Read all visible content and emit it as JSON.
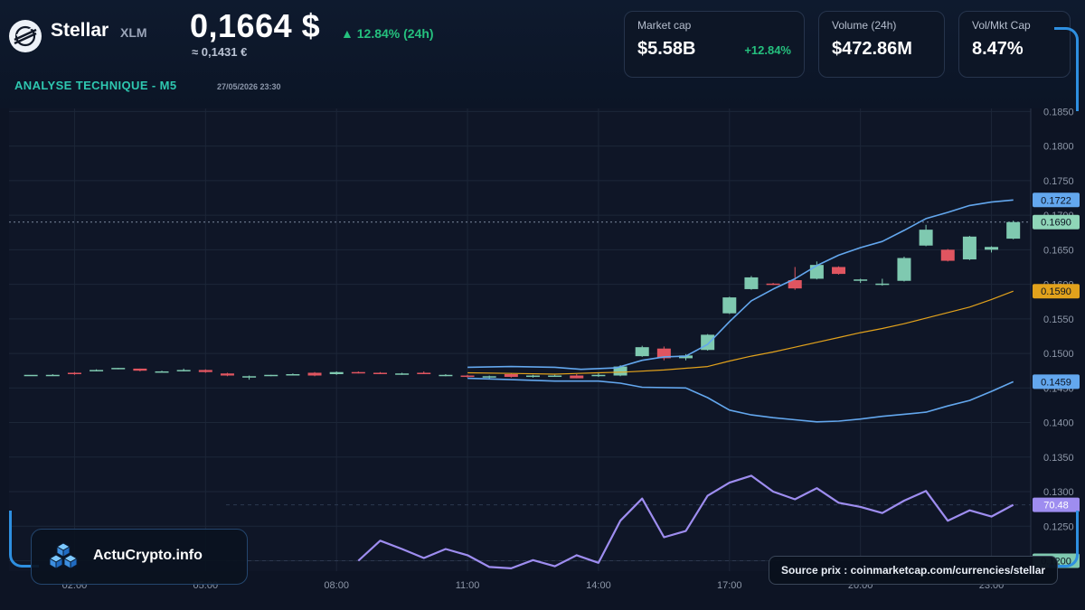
{
  "header": {
    "coin_name": "Stellar",
    "coin_symbol": "XLM",
    "price": "0,1664 $",
    "price_eur": "≈ 0,1431 €",
    "change": "▲ 12.84% (24h)",
    "section_title": "ANALYSE TECHNIQUE - M5",
    "timestamp": "27/05/2026 23:30",
    "logo_icon": "stellar-logo-icon"
  },
  "stats": [
    {
      "label": "Market cap",
      "value": "$5.58B",
      "delta": "+12.84%"
    },
    {
      "label": "Volume (24h)",
      "value": "$472.86M",
      "delta": ""
    },
    {
      "label": "Vol/Mkt Cap",
      "value": "8.47%",
      "delta": ""
    }
  ],
  "brand": {
    "name": "ActuCrypto.info",
    "icon": "cubes-logo-icon"
  },
  "source": {
    "text": "Source prix : coinmarketcap.com/currencies/stellar"
  },
  "colors": {
    "up": "#7fc9b0",
    "down": "#e05560",
    "bollinger": "#63a7ee",
    "ma": "#e2a21c",
    "rsi": "#9e8df0",
    "accent": "#2ec7b0",
    "positive": "#25c07e"
  },
  "chart_data": {
    "type": "candlestick",
    "y_ticks": [
      "0.1200",
      "0.1250",
      "0.1300",
      "0.1350",
      "0.1400",
      "0.1450",
      "0.1500",
      "0.1550",
      "0.1600",
      "0.1650",
      "0.1700",
      "0.1750",
      "0.1800",
      "0.1850"
    ],
    "ylim": [
      0.1185,
      0.1857
    ],
    "x_ticks": [
      "02:00",
      "05:00",
      "08:00",
      "11:00",
      "14:00",
      "17:00",
      "20:00",
      "23:00"
    ],
    "xlim": [
      0.5,
      23.9
    ],
    "price_badges": [
      {
        "label": "0.1722",
        "value": 0.1722,
        "color": "#63a7ee",
        "text_color": "#0b1220"
      },
      {
        "label": "0.1690",
        "value": 0.169,
        "color": "#8fd6b8",
        "text_color": "#0b1220"
      },
      {
        "label": "0.1590",
        "value": 0.159,
        "color": "#e2a21c",
        "text_color": "#0b1220"
      },
      {
        "label": "0.1459",
        "value": 0.1459,
        "color": "#63a7ee",
        "text_color": "#0b1220"
      },
      {
        "label": "70.48",
        "value": 0.1281,
        "color": "#9e8df0",
        "text_color": "#ffffff"
      },
      {
        "label": "0.1200",
        "value": 0.12,
        "color": "#7fc9b0",
        "text_color": "#0b1220"
      }
    ],
    "current_price": 0.169,
    "candles": [
      {
        "t": 1.0,
        "o": 0.1469,
        "h": 0.1469,
        "l": 0.1469,
        "c": 0.1469
      },
      {
        "t": 1.5,
        "o": 0.1469,
        "h": 0.147,
        "l": 0.1468,
        "c": 0.1469
      },
      {
        "t": 2.0,
        "o": 0.1472,
        "h": 0.1473,
        "l": 0.1469,
        "c": 0.147
      },
      {
        "t": 2.5,
        "o": 0.1475,
        "h": 0.1477,
        "l": 0.1474,
        "c": 0.1476
      },
      {
        "t": 3.0,
        "o": 0.1478,
        "h": 0.1479,
        "l": 0.1477,
        "c": 0.1479
      },
      {
        "t": 3.5,
        "o": 0.1478,
        "h": 0.1478,
        "l": 0.1474,
        "c": 0.1475
      },
      {
        "t": 4.0,
        "o": 0.1474,
        "h": 0.1475,
        "l": 0.1473,
        "c": 0.1474
      },
      {
        "t": 4.5,
        "o": 0.1475,
        "h": 0.1478,
        "l": 0.1474,
        "c": 0.1476
      },
      {
        "t": 5.0,
        "o": 0.1476,
        "h": 0.1477,
        "l": 0.1472,
        "c": 0.1473
      },
      {
        "t": 5.5,
        "o": 0.1471,
        "h": 0.1472,
        "l": 0.1467,
        "c": 0.1468
      },
      {
        "t": 6.0,
        "o": 0.1467,
        "h": 0.1468,
        "l": 0.1462,
        "c": 0.1467
      },
      {
        "t": 6.5,
        "o": 0.1468,
        "h": 0.1469,
        "l": 0.1467,
        "c": 0.1469
      },
      {
        "t": 7.0,
        "o": 0.147,
        "h": 0.1471,
        "l": 0.1469,
        "c": 0.147
      },
      {
        "t": 7.5,
        "o": 0.1472,
        "h": 0.1473,
        "l": 0.1467,
        "c": 0.1468
      },
      {
        "t": 8.0,
        "o": 0.147,
        "h": 0.1474,
        "l": 0.1469,
        "c": 0.1473
      },
      {
        "t": 8.5,
        "o": 0.1473,
        "h": 0.1474,
        "l": 0.1471,
        "c": 0.1472
      },
      {
        "t": 9.0,
        "o": 0.1472,
        "h": 0.1473,
        "l": 0.147,
        "c": 0.1471
      },
      {
        "t": 9.5,
        "o": 0.147,
        "h": 0.1472,
        "l": 0.1469,
        "c": 0.1471
      },
      {
        "t": 10.0,
        "o": 0.1472,
        "h": 0.1474,
        "l": 0.147,
        "c": 0.147
      },
      {
        "t": 10.5,
        "o": 0.1469,
        "h": 0.147,
        "l": 0.1467,
        "c": 0.1469
      },
      {
        "t": 11.0,
        "o": 0.1468,
        "h": 0.1469,
        "l": 0.1465,
        "c": 0.1466
      },
      {
        "t": 11.5,
        "o": 0.1466,
        "h": 0.1468,
        "l": 0.1464,
        "c": 0.1467
      },
      {
        "t": 12.0,
        "o": 0.147,
        "h": 0.1471,
        "l": 0.1465,
        "c": 0.1466
      },
      {
        "t": 12.5,
        "o": 0.1466,
        "h": 0.1469,
        "l": 0.1465,
        "c": 0.1468
      },
      {
        "t": 13.0,
        "o": 0.1468,
        "h": 0.1469,
        "l": 0.1467,
        "c": 0.1468
      },
      {
        "t": 13.5,
        "o": 0.1468,
        "h": 0.147,
        "l": 0.1464,
        "c": 0.1464
      },
      {
        "t": 14.0,
        "o": 0.1468,
        "h": 0.1472,
        "l": 0.1466,
        "c": 0.1469
      },
      {
        "t": 14.5,
        "o": 0.1468,
        "h": 0.1483,
        "l": 0.1467,
        "c": 0.1481
      },
      {
        "t": 15.0,
        "o": 0.1496,
        "h": 0.1511,
        "l": 0.1495,
        "c": 0.1509
      },
      {
        "t": 15.5,
        "o": 0.1507,
        "h": 0.151,
        "l": 0.149,
        "c": 0.1493
      },
      {
        "t": 16.0,
        "o": 0.1493,
        "h": 0.1499,
        "l": 0.149,
        "c": 0.1497
      },
      {
        "t": 16.5,
        "o": 0.1505,
        "h": 0.1528,
        "l": 0.1504,
        "c": 0.1527
      },
      {
        "t": 17.0,
        "o": 0.1558,
        "h": 0.1582,
        "l": 0.1557,
        "c": 0.1581
      },
      {
        "t": 17.5,
        "o": 0.1593,
        "h": 0.1612,
        "l": 0.1592,
        "c": 0.161
      },
      {
        "t": 18.0,
        "o": 0.1601,
        "h": 0.1602,
        "l": 0.1599,
        "c": 0.16
      },
      {
        "t": 18.5,
        "o": 0.1606,
        "h": 0.1625,
        "l": 0.1592,
        "c": 0.1594
      },
      {
        "t": 19.0,
        "o": 0.1608,
        "h": 0.1633,
        "l": 0.1607,
        "c": 0.1628
      },
      {
        "t": 19.5,
        "o": 0.1625,
        "h": 0.1626,
        "l": 0.1614,
        "c": 0.1615
      },
      {
        "t": 20.0,
        "o": 0.1605,
        "h": 0.1608,
        "l": 0.1602,
        "c": 0.1607
      },
      {
        "t": 20.5,
        "o": 0.16,
        "h": 0.1608,
        "l": 0.1598,
        "c": 0.1601
      },
      {
        "t": 21.0,
        "o": 0.1605,
        "h": 0.164,
        "l": 0.1604,
        "c": 0.1638
      },
      {
        "t": 21.5,
        "o": 0.1656,
        "h": 0.1686,
        "l": 0.1655,
        "c": 0.1679
      },
      {
        "t": 22.0,
        "o": 0.165,
        "h": 0.1651,
        "l": 0.1633,
        "c": 0.1634
      },
      {
        "t": 22.5,
        "o": 0.1636,
        "h": 0.167,
        "l": 0.1635,
        "c": 0.1669
      },
      {
        "t": 23.0,
        "o": 0.165,
        "h": 0.1655,
        "l": 0.1646,
        "c": 0.1654
      },
      {
        "t": 23.5,
        "o": 0.1666,
        "h": 0.1692,
        "l": 0.1665,
        "c": 0.169
      }
    ],
    "bollinger_upper": [
      [
        11.0,
        0.148
      ],
      [
        12.0,
        0.1481
      ],
      [
        13.0,
        0.148
      ],
      [
        13.6,
        0.1477
      ],
      [
        14.4,
        0.1479
      ],
      [
        15.0,
        0.149
      ],
      [
        15.5,
        0.1495
      ],
      [
        16.0,
        0.1496
      ],
      [
        16.5,
        0.1513
      ],
      [
        17.0,
        0.1546
      ],
      [
        17.5,
        0.1576
      ],
      [
        18.0,
        0.1593
      ],
      [
        18.5,
        0.1608
      ],
      [
        19.0,
        0.1627
      ],
      [
        19.5,
        0.1642
      ],
      [
        20.0,
        0.1653
      ],
      [
        20.5,
        0.1662
      ],
      [
        21.0,
        0.1678
      ],
      [
        21.5,
        0.1695
      ],
      [
        22.0,
        0.1704
      ],
      [
        22.5,
        0.1714
      ],
      [
        23.0,
        0.1719
      ],
      [
        23.5,
        0.1722
      ]
    ],
    "bollinger_lower": [
      [
        11.0,
        0.1464
      ],
      [
        12.0,
        0.1462
      ],
      [
        13.0,
        0.146
      ],
      [
        14.0,
        0.146
      ],
      [
        14.5,
        0.1457
      ],
      [
        15.0,
        0.1451
      ],
      [
        16.0,
        0.145
      ],
      [
        16.5,
        0.1436
      ],
      [
        17.0,
        0.1418
      ],
      [
        17.5,
        0.1411
      ],
      [
        18.0,
        0.1407
      ],
      [
        18.5,
        0.1404
      ],
      [
        19.0,
        0.1401
      ],
      [
        19.5,
        0.1402
      ],
      [
        20.0,
        0.1405
      ],
      [
        20.5,
        0.1409
      ],
      [
        21.0,
        0.1412
      ],
      [
        21.5,
        0.1415
      ],
      [
        22.0,
        0.1424
      ],
      [
        22.5,
        0.1432
      ],
      [
        23.0,
        0.1445
      ],
      [
        23.5,
        0.1459
      ]
    ],
    "moving_average": [
      [
        11.0,
        0.1472
      ],
      [
        12.0,
        0.1471
      ],
      [
        13.0,
        0.147
      ],
      [
        14.0,
        0.1472
      ],
      [
        14.6,
        0.1473
      ],
      [
        15.5,
        0.1476
      ],
      [
        16.5,
        0.1481
      ],
      [
        17.0,
        0.1489
      ],
      [
        17.5,
        0.1496
      ],
      [
        18.0,
        0.1502
      ],
      [
        18.5,
        0.1509
      ],
      [
        19.0,
        0.1516
      ],
      [
        19.5,
        0.1523
      ],
      [
        20.0,
        0.153
      ],
      [
        20.5,
        0.1536
      ],
      [
        21.0,
        0.1543
      ],
      [
        21.5,
        0.1551
      ],
      [
        22.0,
        0.1559
      ],
      [
        22.5,
        0.1567
      ],
      [
        23.0,
        0.1578
      ],
      [
        23.5,
        0.159
      ]
    ],
    "rsi_line": [
      [
        8.5,
        0.12
      ],
      [
        9.0,
        0.1229
      ],
      [
        9.5,
        0.1217
      ],
      [
        10.0,
        0.1204
      ],
      [
        10.5,
        0.1217
      ],
      [
        11.0,
        0.1208
      ],
      [
        11.5,
        0.1191
      ],
      [
        12.0,
        0.1189
      ],
      [
        12.5,
        0.1201
      ],
      [
        13.0,
        0.1192
      ],
      [
        13.5,
        0.1208
      ],
      [
        14.0,
        0.1197
      ],
      [
        14.5,
        0.1258
      ],
      [
        15.0,
        0.129
      ],
      [
        15.5,
        0.1234
      ],
      [
        16.0,
        0.1243
      ],
      [
        16.5,
        0.1294
      ],
      [
        17.0,
        0.1313
      ],
      [
        17.5,
        0.1323
      ],
      [
        18.0,
        0.13
      ],
      [
        18.5,
        0.1289
      ],
      [
        19.0,
        0.1305
      ],
      [
        19.5,
        0.1284
      ],
      [
        20.0,
        0.1278
      ],
      [
        20.5,
        0.1269
      ],
      [
        21.0,
        0.1287
      ],
      [
        21.5,
        0.1301
      ],
      [
        22.0,
        0.1258
      ],
      [
        22.5,
        0.1273
      ],
      [
        23.0,
        0.1264
      ],
      [
        23.5,
        0.1281
      ]
    ],
    "dashed_levels": [
      0.1281,
      0.12
    ],
    "grid": true
  }
}
